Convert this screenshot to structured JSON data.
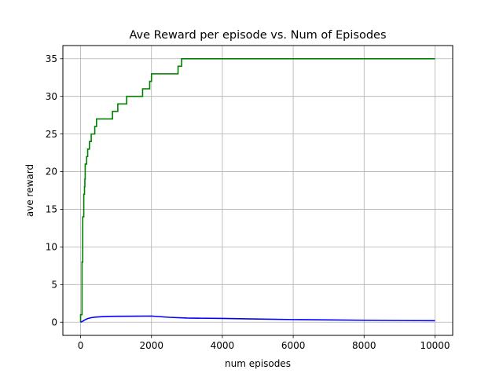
{
  "chart_data": {
    "type": "line",
    "title": "Ave Reward per episode vs. Num of Episodes",
    "xlabel": "num episodes",
    "ylabel": "ave reward",
    "xlim": [
      -500,
      10500
    ],
    "ylim": [
      -1.75,
      36.75
    ],
    "xticks": [
      0,
      2000,
      4000,
      6000,
      8000,
      10000
    ],
    "yticks": [
      0,
      5,
      10,
      15,
      20,
      25,
      30,
      35
    ],
    "xtick_labels": [
      "0",
      "2000",
      "4000",
      "6000",
      "8000",
      "10000"
    ],
    "ytick_labels": [
      "0",
      "5",
      "10",
      "15",
      "20",
      "25",
      "30",
      "35"
    ],
    "grid": true,
    "legend": false,
    "series": [
      {
        "color": "#008000",
        "step": true,
        "x": [
          0,
          40,
          60,
          90,
          110,
          120,
          130,
          150,
          170,
          200,
          220,
          250,
          300,
          400,
          450,
          900,
          1050,
          1300,
          1750,
          1950,
          2000,
          2750,
          2850,
          3400,
          10000
        ],
        "y": [
          0,
          1,
          8,
          14,
          17,
          18,
          19,
          21,
          21,
          22,
          23,
          23,
          24,
          25,
          26,
          27,
          28,
          29,
          30,
          31,
          32,
          33,
          34,
          35,
          35
        ]
      },
      {
        "color": "#0000ff",
        "step": false,
        "x": [
          0,
          50,
          100,
          150,
          200,
          300,
          400,
          600,
          800,
          1000,
          1500,
          2000,
          2500,
          3000,
          4000,
          5000,
          6000,
          7000,
          8000,
          9000,
          10000
        ],
        "y": [
          0,
          0.1,
          0.25,
          0.38,
          0.48,
          0.6,
          0.67,
          0.73,
          0.77,
          0.79,
          0.8,
          0.82,
          0.65,
          0.55,
          0.5,
          0.42,
          0.35,
          0.3,
          0.26,
          0.22,
          0.2
        ]
      }
    ]
  }
}
